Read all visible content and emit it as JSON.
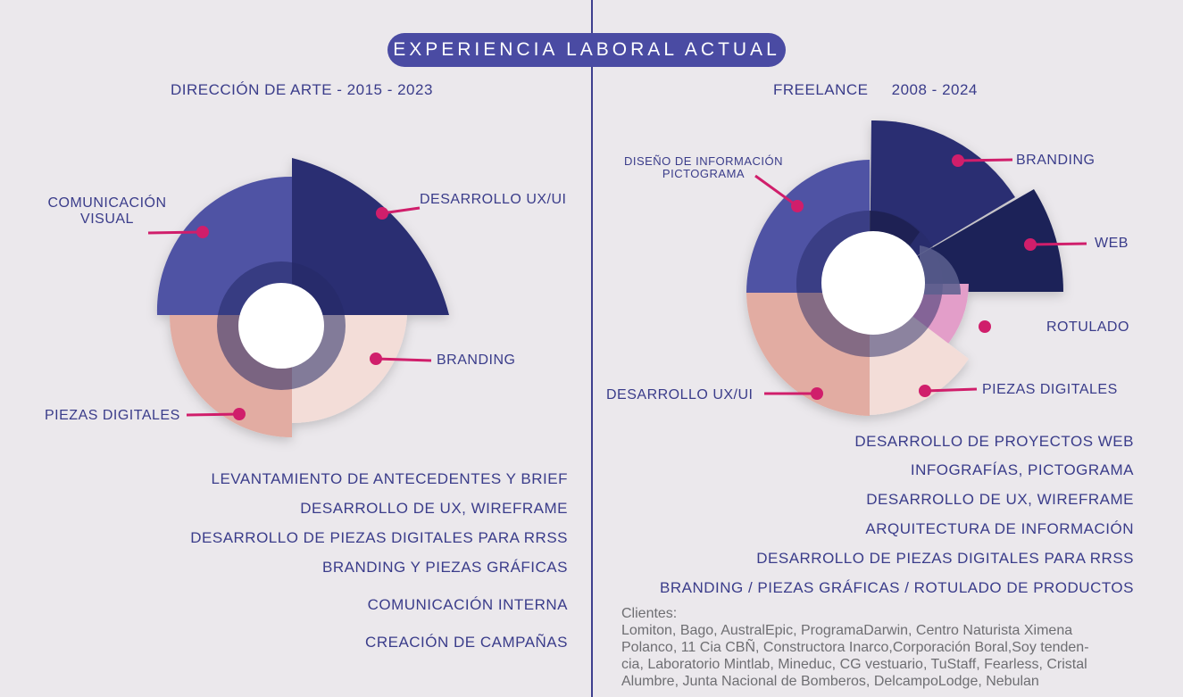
{
  "title": "EXPERIENCIA LABORAL ACTUAL",
  "colors": {
    "navy": "#2a2f72",
    "indigo": "#4f52a4",
    "salmon": "#e2aca2",
    "peach": "#f3ddd8",
    "pink": "#e39ec9",
    "accent": "#d01e6b",
    "text": "#3a3c8a"
  },
  "left": {
    "subtitle": "DIRECCIÓN DE ARTE - 2015 - 2023",
    "labels": {
      "comunicacion_1": "COMUNICACIÓN",
      "comunicacion_2": "VISUAL",
      "ux": "DESARROLLO UX/UI",
      "branding": "BRANDING",
      "piezas": "PIEZAS DIGITALES"
    },
    "tasks": [
      "LEVANTAMIENTO DE ANTECEDENTES Y BRIEF",
      "DESARROLLO DE UX, WIREFRAME",
      "DESARROLLO DE PIEZAS DIGITALES PARA RRSS",
      "BRANDING Y PIEZAS GRÁFICAS",
      "COMUNICACIÓN INTERNA",
      "CREACIÓN DE CAMPAÑAS"
    ]
  },
  "right": {
    "subtitle": "FREELANCE     2008 - 2024",
    "labels": {
      "diseno_1": "DISEÑO DE INFORMACIÓN",
      "diseno_2": "PICTOGRAMA",
      "branding": "BRANDING",
      "web": "WEB",
      "rotulado": "ROTULADO",
      "piezas": "PIEZAS DIGITALES",
      "ux": "DESARROLLO UX/UI"
    },
    "tasks": [
      "DESARROLLO DE PROYECTOS WEB",
      "INFOGRAFÍAS, PICTOGRAMA",
      "DESARROLLO DE UX, WIREFRAME",
      "ARQUITECTURA DE INFORMACIÓN",
      "DESARROLLO DE PIEZAS DIGITALES PARA RRSS",
      "BRANDING / PIEZAS GRÁFICAS / ROTULADO DE PRODUCTOS"
    ],
    "clients_label": "Clientes:",
    "clients_lines": [
      "Lomiton, Bago, AustralEpic, ProgramaDarwin, Centro Naturista Ximena",
      "Polanco, 11 Cia CBÑ, Constructora Inarco,Corporación Boral,Soy tenden-",
      "cia, Laboratorio Mintlab, Mineduc, CG vestuario, TuStaff, Fearless, Cristal",
      "Alumbre, Junta Nacional de Bomberos, DelcampoLodge, Nebulan"
    ]
  }
}
